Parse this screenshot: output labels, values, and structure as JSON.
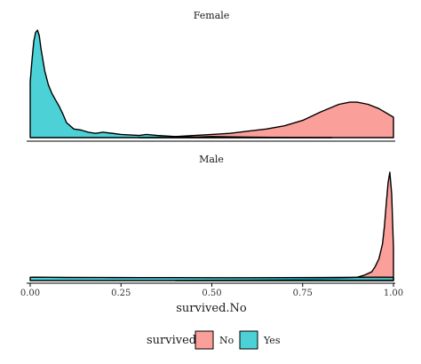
{
  "chart_data": {
    "type": "area",
    "xlabel": "survived.No",
    "ylabel": "",
    "xlim": [
      0,
      1
    ],
    "x_ticks": [
      "0.00",
      "0.25",
      "0.50",
      "0.75",
      "1.00"
    ],
    "grid": false,
    "legend": {
      "title": "survived",
      "placement": "bottom",
      "entries": [
        {
          "label": "No",
          "color": "#F8766D"
        },
        {
          "label": "Yes",
          "color": "#00BFC4"
        }
      ]
    },
    "panels": [
      {
        "strip": "Female",
        "series": [
          {
            "name": "No",
            "color": "#F8766D",
            "x": [
              0.3,
              0.4,
              0.5,
              0.55,
              0.6,
              0.65,
              0.7,
              0.75,
              0.8,
              0.85,
              0.88,
              0.9,
              0.93,
              0.96,
              1.0
            ],
            "y": [
              0.0,
              0.01,
              0.03,
              0.04,
              0.06,
              0.08,
              0.11,
              0.16,
              0.24,
              0.31,
              0.33,
              0.33,
              0.31,
              0.27,
              0.19
            ]
          },
          {
            "name": "Yes",
            "color": "#00BFC4",
            "x": [
              0.0,
              0.005,
              0.01,
              0.015,
              0.02,
              0.025,
              0.03,
              0.04,
              0.05,
              0.06,
              0.07,
              0.08,
              0.09,
              0.1,
              0.12,
              0.14,
              0.16,
              0.18,
              0.2,
              0.25,
              0.3,
              0.32,
              0.35,
              0.4,
              0.45,
              0.5,
              0.6,
              0.7,
              0.83
            ],
            "y": [
              0.52,
              0.72,
              0.9,
              0.98,
              1.0,
              0.95,
              0.82,
              0.62,
              0.49,
              0.41,
              0.35,
              0.29,
              0.22,
              0.14,
              0.08,
              0.07,
              0.05,
              0.04,
              0.05,
              0.03,
              0.02,
              0.03,
              0.02,
              0.01,
              0.005,
              0.01,
              0.005,
              0.002,
              0.0
            ]
          }
        ]
      },
      {
        "strip": "Male",
        "series": [
          {
            "name": "No",
            "color": "#F8766D",
            "x": [
              0.4,
              0.5,
              0.6,
              0.7,
              0.8,
              0.85,
              0.88,
              0.9,
              0.92,
              0.94,
              0.95,
              0.96,
              0.97,
              0.975,
              0.98,
              0.985,
              0.99,
              0.995,
              1.0
            ],
            "y": [
              0.0,
              0.003,
              0.006,
              0.01,
              0.015,
              0.02,
              0.025,
              0.03,
              0.05,
              0.08,
              0.13,
              0.2,
              0.34,
              0.5,
              0.7,
              0.9,
              1.0,
              0.8,
              0.3
            ]
          },
          {
            "name": "Yes",
            "color": "#00BFC4",
            "x": [
              0.0,
              0.01,
              0.05,
              0.1,
              0.2,
              0.3,
              0.4,
              0.5,
              0.6,
              0.7,
              0.8,
              0.9,
              0.95,
              0.98,
              1.0
            ],
            "y": [
              0.03,
              0.031,
              0.03,
              0.029,
              0.028,
              0.027,
              0.027,
              0.026,
              0.026,
              0.027,
              0.028,
              0.03,
              0.031,
              0.031,
              0.03
            ]
          }
        ]
      }
    ]
  }
}
